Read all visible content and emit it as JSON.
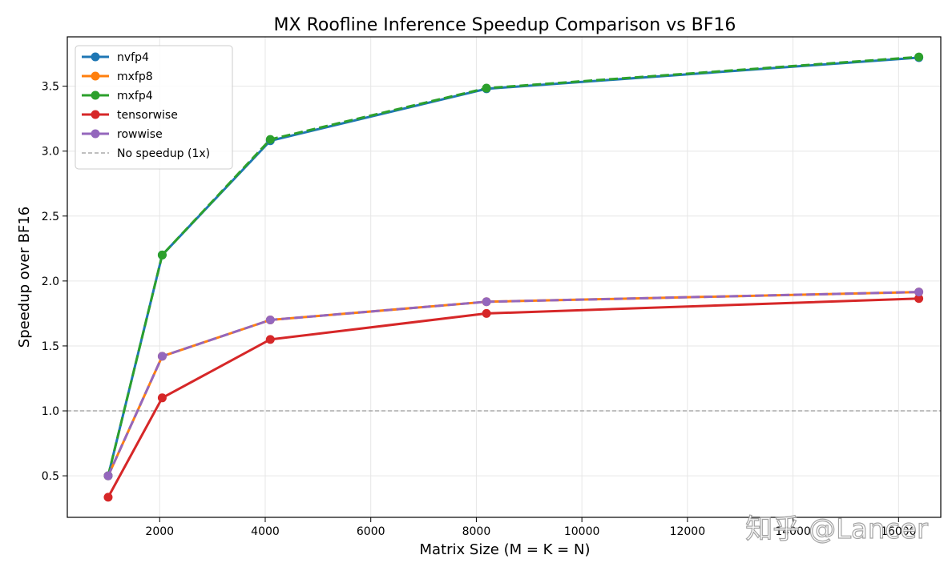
{
  "watermark": "知乎 @Lancer",
  "chart_data": {
    "type": "line",
    "title": "MX Roofline Inference Speedup Comparison vs BF16",
    "xlabel": "Matrix Size (M = K = N)",
    "ylabel": "Speedup over BF16",
    "xlim": [
      250,
      16800
    ],
    "ylim": [
      0.18,
      3.88
    ],
    "xticks": [
      2000,
      4000,
      6000,
      8000,
      10000,
      12000,
      14000,
      16000
    ],
    "yticks": [
      0.5,
      1.0,
      1.5,
      2.0,
      2.5,
      3.0,
      3.5
    ],
    "x": [
      1024,
      2048,
      4096,
      8192,
      16384
    ],
    "grid": true,
    "legend_position": "top-left",
    "series": [
      {
        "name": "nvfp4",
        "color": "#1f77b4",
        "dashed": false,
        "values": [
          0.5,
          2.2,
          3.08,
          3.48,
          3.72
        ]
      },
      {
        "name": "mxfp8",
        "color": "#ff7f0e",
        "dashed": false,
        "values": [
          0.5,
          1.42,
          1.7,
          1.84,
          1.915
        ]
      },
      {
        "name": "mxfp4",
        "color": "#2ca02c",
        "dashed": true,
        "values": [
          0.5,
          2.2,
          3.09,
          3.485,
          3.725
        ]
      },
      {
        "name": "tensorwise",
        "color": "#d62728",
        "dashed": false,
        "values": [
          0.335,
          1.1,
          1.55,
          1.75,
          1.865
        ]
      },
      {
        "name": "rowwise",
        "color": "#9467bd",
        "dashed": true,
        "values": [
          0.5,
          1.42,
          1.7,
          1.84,
          1.915
        ]
      }
    ],
    "reference_line": {
      "name": "No speedup (1x)",
      "y": 1.0,
      "color": "#999999"
    }
  }
}
